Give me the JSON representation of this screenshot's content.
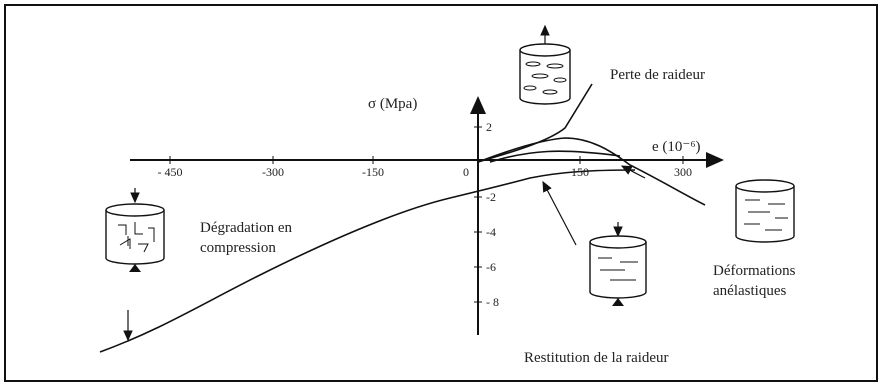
{
  "axes": {
    "y_label": "σ (Mpa)",
    "x_label": "e (10⁻⁶)",
    "x_ticks": [
      "- 450",
      "-300",
      "-150",
      "0",
      "150",
      "300"
    ],
    "y_ticks": [
      "2",
      "-2",
      "-4",
      "-6",
      "- 8"
    ]
  },
  "annotations": {
    "stiffness_loss": "Perte de raideur",
    "compression_damage": [
      "Dégradation en",
      "compression"
    ],
    "inelastic_strain": [
      "Déformations",
      "anélastiques"
    ],
    "stiffness_recovery": "Restitution de la raideur"
  }
}
